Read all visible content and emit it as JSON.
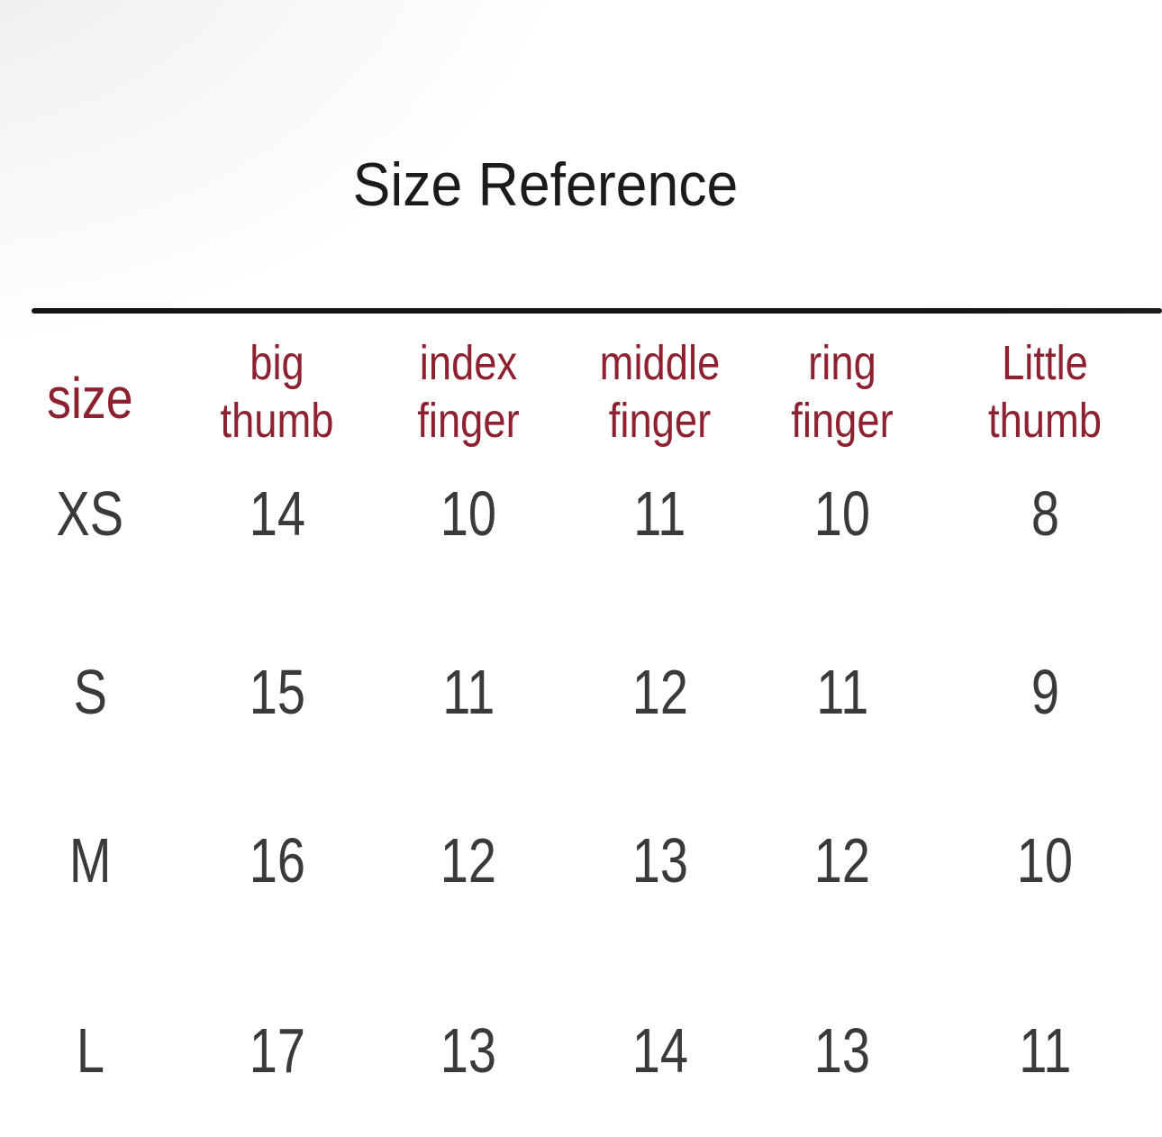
{
  "page": {
    "background": "#ffffff",
    "accent_red": "#8e2130",
    "value_text_color": "#3a3a3a",
    "title_color": "#1b1b1b",
    "rule_color": "#131313"
  },
  "chart_data": {
    "type": "table",
    "title": "Size Reference",
    "columns": [
      "size",
      "big thumb",
      "index finger",
      "middle finger",
      "ring finger",
      "Little thumb"
    ],
    "rows": [
      [
        "XS",
        14,
        10,
        11,
        10,
        8
      ],
      [
        "S",
        15,
        11,
        12,
        11,
        9
      ],
      [
        "M",
        16,
        12,
        13,
        12,
        10
      ],
      [
        "L",
        17,
        13,
        14,
        13,
        11
      ]
    ]
  }
}
